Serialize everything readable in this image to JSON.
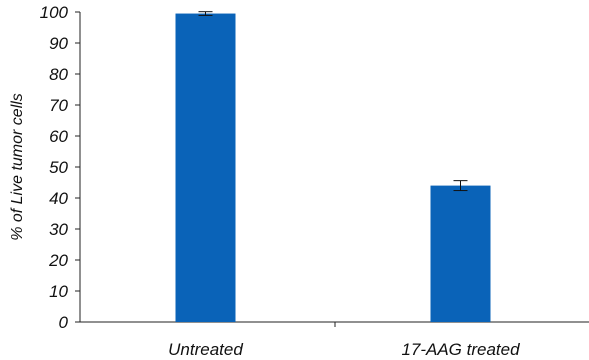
{
  "chart_data": {
    "type": "bar",
    "categories": [
      "Untreated",
      "17-AAG treated"
    ],
    "values": [
      99.5,
      44
    ],
    "error": [
      0.6,
      1.6
    ],
    "ylabel": "% of Live tumor cells",
    "xlabel": "",
    "ylim": [
      0,
      100
    ],
    "yticks": [
      "0",
      "10",
      "20",
      "30",
      "40",
      "50",
      "60",
      "70",
      "80",
      "90",
      "100"
    ],
    "grid": false,
    "bar_color": "#0a63b8"
  }
}
